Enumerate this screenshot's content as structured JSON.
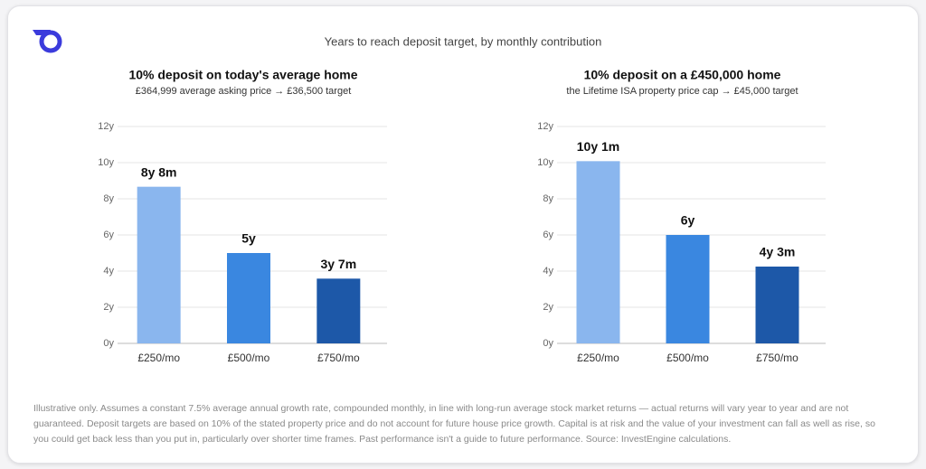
{
  "page": {
    "title": "Years to reach deposit target, by monthly contribution",
    "footnote": "Illustrative only. Assumes a constant 7.5% average annual growth rate, compounded monthly, in line with long-run average stock market returns — actual returns will vary year to year and are not guaranteed. Deposit targets are based on 10% of the stated property price and do not account for future house price growth. Capital is at risk and the value of your investment can fall as well as rise, so you could get back less than you put in, particularly over shorter time frames. Past performance isn't a guide to future performance. Source: InvestEngine calculations."
  },
  "chart_data": [
    {
      "type": "bar",
      "title": "10% deposit on today's average home",
      "subtitle": "£364,999 average asking price → £36,500 target",
      "categories": [
        "£250/mo",
        "£500/mo",
        "£750/mo"
      ],
      "values": [
        8.667,
        5,
        3.583
      ],
      "value_labels": [
        "8y 8m",
        "5y",
        "3y 7m"
      ],
      "colors": [
        "#8ab6ee",
        "#3a87e0",
        "#1d58a8"
      ],
      "ylim": [
        0,
        12
      ],
      "yticks": [
        {
          "value": 0,
          "label": "0y"
        },
        {
          "value": 2,
          "label": "2y"
        },
        {
          "value": 4,
          "label": "4y"
        },
        {
          "value": 6,
          "label": "6y"
        },
        {
          "value": 8,
          "label": "8y"
        },
        {
          "value": 10,
          "label": "10y"
        },
        {
          "value": 12,
          "label": "12y"
        }
      ],
      "grid": true
    },
    {
      "type": "bar",
      "title": "10% deposit on a £450,000 home",
      "subtitle": "the Lifetime ISA property price cap → £45,000 target",
      "categories": [
        "£250/mo",
        "£500/mo",
        "£750/mo"
      ],
      "values": [
        10.083,
        6,
        4.25
      ],
      "value_labels": [
        "10y 1m",
        "6y",
        "4y 3m"
      ],
      "colors": [
        "#8ab6ee",
        "#3a87e0",
        "#1d58a8"
      ],
      "ylim": [
        0,
        12
      ],
      "yticks": [
        {
          "value": 0,
          "label": "0y"
        },
        {
          "value": 2,
          "label": "2y"
        },
        {
          "value": 4,
          "label": "4y"
        },
        {
          "value": 6,
          "label": "6y"
        },
        {
          "value": 8,
          "label": "8y"
        },
        {
          "value": 10,
          "label": "10y"
        },
        {
          "value": 12,
          "label": "12y"
        }
      ],
      "grid": true
    }
  ]
}
